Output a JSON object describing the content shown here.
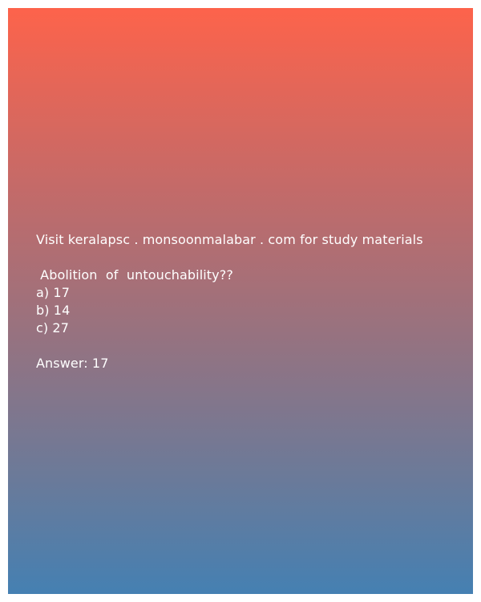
{
  "header": {
    "text": "Visit keralapsc . monsoonmalabar . com for study materials"
  },
  "question": {
    "text": " Abolition  of  untouchability??"
  },
  "options": [
    {
      "label": "a) 17"
    },
    {
      "label": "b) 14"
    },
    {
      "label": "c) 27"
    }
  ],
  "answer": {
    "text": "Answer: 17"
  },
  "colors": {
    "gradient_top": "#fd634b",
    "gradient_bottom": "#4580b2",
    "text": "#ffffff"
  }
}
